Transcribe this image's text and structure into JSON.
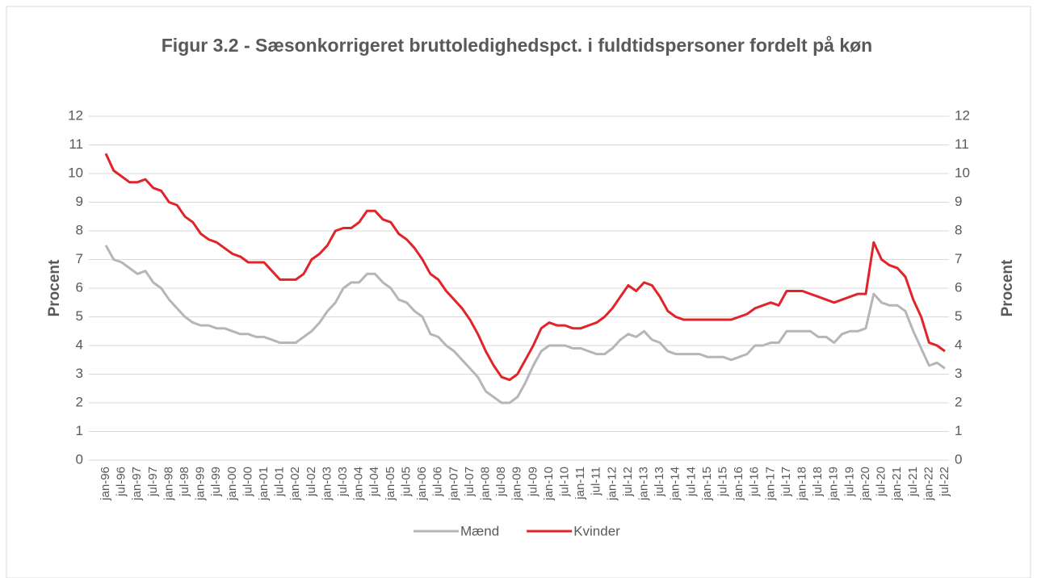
{
  "chart_data": {
    "type": "line",
    "title": "Figur 3.2 - Sæsonkorrigeret bruttoledighedspct. i fuldtidspersoner fordelt på køn",
    "ylabel": "Procent",
    "y2label": "Procent",
    "categories": [
      "jan-96",
      null,
      "jul-96",
      null,
      "jan-97",
      null,
      "jul-97",
      null,
      "jan-98",
      null,
      "jul-98",
      null,
      "jan-99",
      null,
      "jul-99",
      null,
      "jan-00",
      null,
      "jul-00",
      null,
      "jan-01",
      null,
      "jul-01",
      null,
      "jan-02",
      null,
      "jul-02",
      null,
      "jan-03",
      null,
      "jul-03",
      null,
      "jan-04",
      null,
      "jul-04",
      null,
      "jan-05",
      null,
      "jul-05",
      null,
      "jan-06",
      null,
      "jul-06",
      null,
      "jan-07",
      null,
      "jul-07",
      null,
      "jan-08",
      null,
      "jul-08",
      null,
      "jan-09",
      null,
      "jul-09",
      null,
      "jan-10",
      null,
      "jul-10",
      null,
      "jan-11",
      null,
      "jul-11",
      null,
      "jan-12",
      null,
      "jul-12",
      null,
      "jan-13",
      null,
      "jul-13",
      null,
      "jan-14",
      null,
      "jul-14",
      null,
      "jan-15",
      null,
      "jul-15",
      null,
      "jan-16",
      null,
      "jul-16",
      null,
      "jan-17",
      null,
      "jul-17",
      null,
      "jan-18",
      null,
      "jul-18",
      null,
      "jan-19",
      null,
      "jul-19",
      null,
      "jan-20",
      null,
      "jul-20",
      null,
      "jan-21",
      null,
      "jul-21",
      null,
      "jan-22",
      null,
      "jul-22"
    ],
    "series": [
      {
        "name": "Mænd",
        "color": "#b4b6bb",
        "values": [
          7.5,
          7.0,
          6.9,
          6.7,
          6.5,
          6.6,
          6.2,
          6.0,
          5.6,
          5.3,
          5.0,
          4.8,
          4.7,
          4.7,
          4.6,
          4.6,
          4.5,
          4.4,
          4.4,
          4.3,
          4.3,
          4.2,
          4.1,
          4.1,
          4.1,
          4.3,
          4.5,
          4.8,
          5.2,
          5.5,
          6.0,
          6.2,
          6.2,
          6.5,
          6.5,
          6.2,
          6.0,
          5.6,
          5.5,
          5.2,
          5.0,
          4.4,
          4.3,
          4.0,
          3.8,
          3.5,
          3.2,
          2.9,
          2.4,
          2.2,
          2.0,
          2.0,
          2.2,
          2.7,
          3.3,
          3.8,
          4.0,
          4.0,
          4.0,
          3.9,
          3.9,
          3.8,
          3.7,
          3.7,
          3.9,
          4.2,
          4.4,
          4.3,
          4.5,
          4.2,
          4.1,
          3.8,
          3.7,
          3.7,
          3.7,
          3.7,
          3.6,
          3.6,
          3.6,
          3.5,
          3.6,
          3.7,
          4.0,
          4.0,
          4.1,
          4.1,
          4.5,
          4.5,
          4.5,
          4.5,
          4.3,
          4.3,
          4.1,
          4.4,
          4.5,
          4.5,
          4.6,
          5.8,
          5.5,
          5.4,
          5.4,
          5.2,
          4.5,
          3.9,
          3.3,
          3.4,
          3.2
        ]
      },
      {
        "name": "Kvinder",
        "color": "#e0242a",
        "values": [
          10.7,
          10.1,
          9.9,
          9.7,
          9.7,
          9.8,
          9.5,
          9.4,
          9.0,
          8.9,
          8.5,
          8.3,
          7.9,
          7.7,
          7.6,
          7.4,
          7.2,
          7.1,
          6.9,
          6.9,
          6.9,
          6.6,
          6.3,
          6.3,
          6.3,
          6.5,
          7.0,
          7.2,
          7.5,
          8.0,
          8.1,
          8.1,
          8.3,
          8.7,
          8.7,
          8.4,
          8.3,
          7.9,
          7.7,
          7.4,
          7.0,
          6.5,
          6.3,
          5.9,
          5.6,
          5.3,
          4.9,
          4.4,
          3.8,
          3.3,
          2.9,
          2.8,
          3.0,
          3.5,
          4.0,
          4.6,
          4.8,
          4.7,
          4.7,
          4.6,
          4.6,
          4.7,
          4.8,
          5.0,
          5.3,
          5.7,
          6.1,
          5.9,
          6.2,
          6.1,
          5.7,
          5.2,
          5.0,
          4.9,
          4.9,
          4.9,
          4.9,
          4.9,
          4.9,
          4.9,
          5.0,
          5.1,
          5.3,
          5.4,
          5.5,
          5.4,
          5.9,
          5.9,
          5.9,
          5.8,
          5.7,
          5.6,
          5.5,
          5.6,
          5.7,
          5.8,
          5.8,
          7.6,
          7.0,
          6.8,
          6.7,
          6.4,
          5.6,
          5.0,
          4.1,
          4.0,
          3.8
        ]
      }
    ],
    "ylim": [
      0,
      12
    ],
    "yticks": [
      0,
      1,
      2,
      3,
      4,
      5,
      6,
      7,
      8,
      9,
      10,
      11,
      12
    ],
    "y2lim": [
      0,
      12
    ],
    "y2ticks": [
      0,
      1,
      2,
      3,
      4,
      5,
      6,
      7,
      8,
      9,
      10,
      11,
      12
    ],
    "grid": true,
    "legend": "bottom"
  }
}
